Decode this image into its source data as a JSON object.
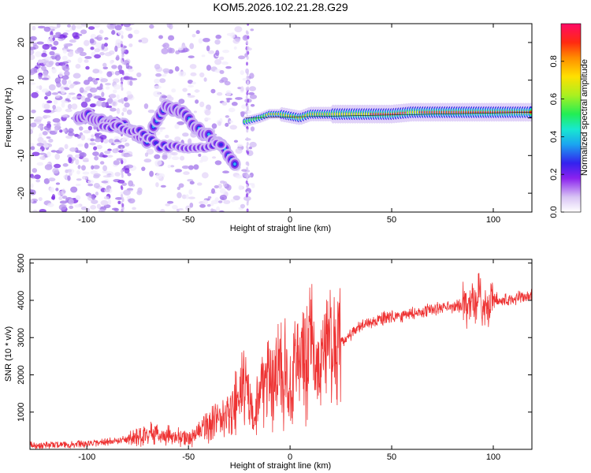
{
  "title": "KOM5.2026.102.21.28.G29",
  "chart_data": [
    {
      "type": "heatmap",
      "name": "spectrogram",
      "xlabel": "Height of straight line (km)",
      "ylabel": "Frequency (Hz)",
      "xlim": [
        -128,
        119
      ],
      "ylim": [
        -25,
        25
      ],
      "xticks": [
        -100,
        -50,
        0,
        50,
        100
      ],
      "xtick_labels": [
        "-100",
        "-50",
        "0",
        "50",
        "100"
      ],
      "yticks": [
        -20,
        -10,
        0,
        10,
        20
      ],
      "ytick_labels": [
        "-20",
        "-10",
        "0",
        "10",
        "20"
      ],
      "ridge": {
        "x": [
          -98,
          -90,
          -80,
          -70,
          -62,
          -55,
          -50,
          -45,
          -40,
          -35,
          -30,
          -27
        ],
        "freq": [
          0.5,
          -1.5,
          -2.5,
          -6,
          3,
          2,
          0,
          -3,
          -5,
          -7,
          -10,
          -12
        ],
        "note": "descending streak from the left",
        "second_branch": {
          "x": [
            -90,
            -80,
            -72,
            -65,
            -55,
            -45,
            -35
          ],
          "freq": [
            -2,
            -3,
            -4,
            -7.5,
            -8,
            -8,
            -7
          ]
        },
        "main_line": {
          "x": [
            -22,
            -15,
            -10,
            -5,
            0,
            5,
            10,
            20,
            30,
            40,
            50,
            60,
            70,
            80,
            90,
            100,
            110,
            119
          ],
          "freq": [
            -1,
            0,
            1,
            1,
            0.5,
            0,
            1,
            1,
            1,
            1,
            1,
            1.5,
            1.5,
            1.5,
            1.5,
            1.5,
            1.5,
            1.5
          ]
        }
      },
      "colorbar": {
        "label": "Normalized spectral amplitude",
        "range": [
          0,
          1
        ],
        "ticks": [
          0.0,
          0.2,
          0.4,
          0.6,
          0.8
        ],
        "tick_labels": [
          "0.0",
          "0.2",
          "0.4",
          "0.6",
          "0.8"
        ]
      }
    },
    {
      "type": "line",
      "name": "snr",
      "xlabel": "Height of straight line (km)",
      "ylabel": "SNR (10 * v/v)",
      "xlim": [
        -128,
        119
      ],
      "ylim": [
        0,
        5100
      ],
      "xticks": [
        -100,
        -50,
        0,
        50,
        100
      ],
      "xtick_labels": [
        "-100",
        "-50",
        "0",
        "50",
        "100"
      ],
      "yticks": [
        1000,
        2000,
        3000,
        4000,
        5000
      ],
      "ytick_labels": [
        "1000",
        "2000",
        "3000",
        "4000",
        "5000"
      ],
      "series": [
        {
          "name": "SNR",
          "color": "#ee3333",
          "x": [
            -128,
            -110,
            -100,
            -90,
            -80,
            -70,
            -60,
            -50,
            -45,
            -40,
            -35,
            -30,
            -25,
            -22,
            -20,
            -18,
            -15,
            -10,
            -5,
            0,
            5,
            10,
            15,
            20,
            25,
            30,
            35,
            40,
            45,
            50,
            55,
            60,
            65,
            70,
            75,
            80,
            85,
            90,
            93,
            95,
            100,
            110,
            119
          ],
          "y": [
            100,
            130,
            150,
            200,
            260,
            420,
            360,
            280,
            500,
            680,
            800,
            900,
            1350,
            1700,
            1350,
            700,
            1650,
            1950,
            2150,
            1950,
            2400,
            2550,
            2300,
            2500,
            2800,
            3100,
            3300,
            3400,
            3500,
            3550,
            3600,
            3650,
            3700,
            3750,
            3800,
            3850,
            3850,
            3850,
            4300,
            3700,
            4000,
            4050,
            4100
          ],
          "note": "dense noisy trace oscillating around this envelope"
        }
      ]
    }
  ]
}
